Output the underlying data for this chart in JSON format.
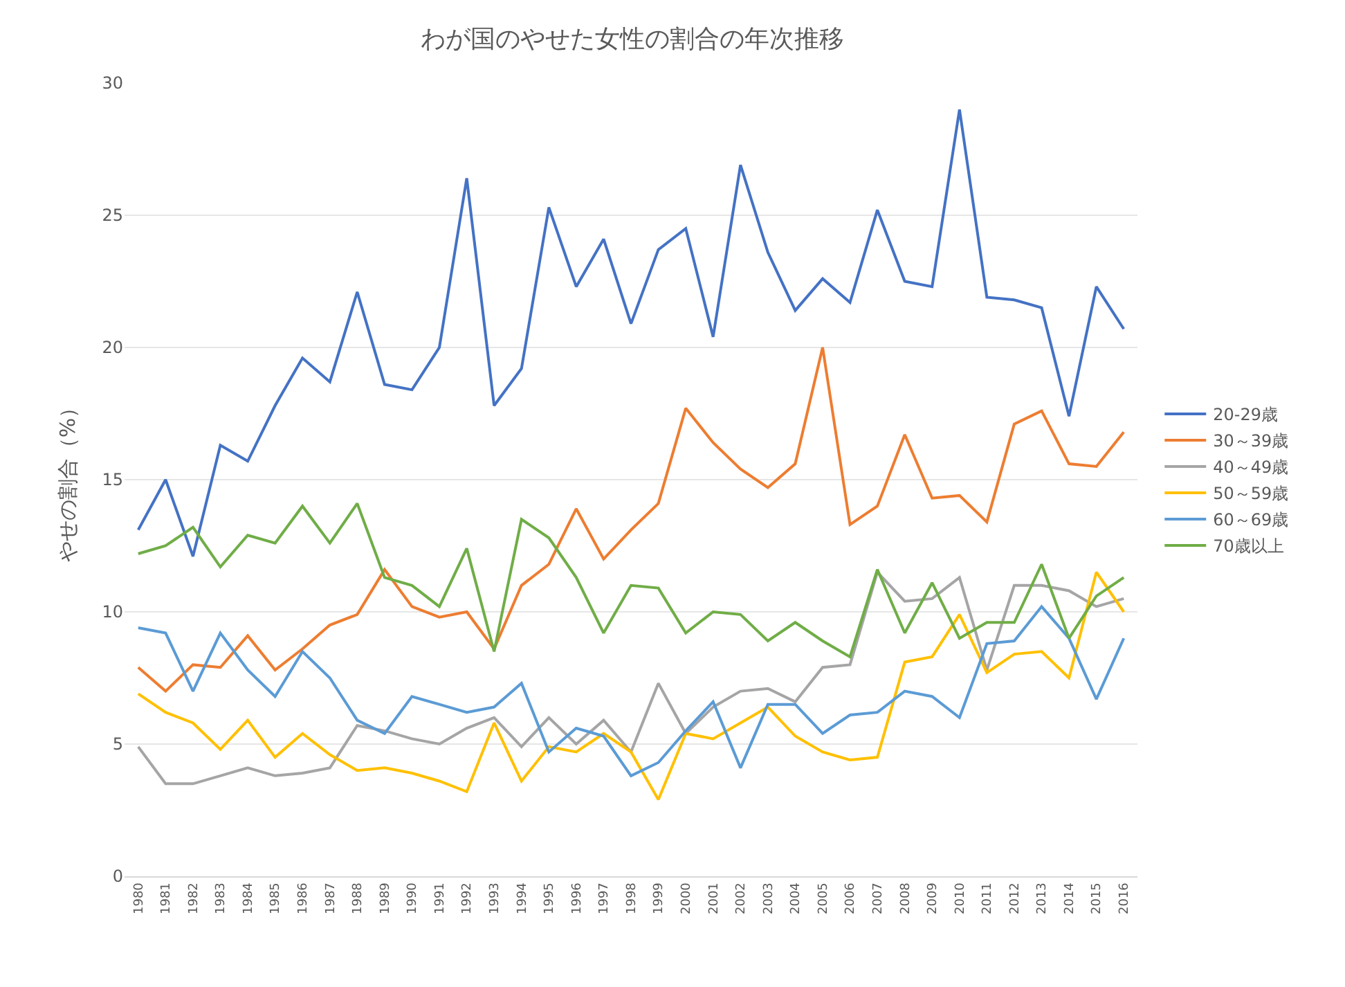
{
  "chart_data": {
    "type": "line",
    "title": "わが国のやせた女性の割合の年次推移",
    "ylabel": "やせの割合（%）",
    "categories": [
      "1980",
      "1981",
      "1982",
      "1983",
      "1984",
      "1985",
      "1986",
      "1987",
      "1988",
      "1989",
      "1990",
      "1991",
      "1992",
      "1993",
      "1994",
      "1995",
      "1996",
      "1997",
      "1998",
      "1999",
      "2000",
      "2001",
      "2002",
      "2003",
      "2004",
      "2005",
      "2006",
      "2007",
      "2008",
      "2009",
      "2010",
      "2011",
      "2012",
      "2013",
      "2014",
      "2015",
      "2016"
    ],
    "ylim": [
      0,
      30
    ],
    "yticks": [
      0,
      5,
      10,
      15,
      20,
      25,
      30
    ],
    "grid": "y",
    "legend": "right",
    "marker": "none",
    "line_style": "solid",
    "series": [
      {
        "name": "20-29歳",
        "color": "#4472c4",
        "values": [
          13.1,
          15.0,
          12.1,
          16.3,
          15.7,
          17.8,
          19.6,
          18.7,
          22.1,
          18.6,
          18.4,
          20.0,
          26.4,
          17.8,
          19.2,
          25.3,
          22.3,
          24.1,
          20.9,
          23.7,
          24.5,
          20.4,
          26.9,
          23.6,
          21.4,
          22.6,
          21.7,
          25.2,
          22.5,
          22.3,
          29.0,
          21.9,
          21.8,
          21.5,
          17.4,
          22.3,
          20.7
        ]
      },
      {
        "name": "30～39歳",
        "color": "#ed7d31",
        "values": [
          7.9,
          7.0,
          8.0,
          7.9,
          9.1,
          7.8,
          8.6,
          9.5,
          9.9,
          11.6,
          10.2,
          9.8,
          10.0,
          8.6,
          11.0,
          11.8,
          13.9,
          12.0,
          13.1,
          14.1,
          17.7,
          16.4,
          15.4,
          14.7,
          15.6,
          20.0,
          13.3,
          14.0,
          16.7,
          14.3,
          14.4,
          13.4,
          17.1,
          17.6,
          15.6,
          15.5,
          16.8
        ]
      },
      {
        "name": "40～49歳",
        "color": "#a5a5a5",
        "values": [
          4.9,
          3.5,
          3.5,
          3.8,
          4.1,
          3.8,
          3.9,
          4.1,
          5.7,
          5.5,
          5.2,
          5.0,
          5.6,
          6.0,
          4.9,
          6.0,
          5.0,
          5.9,
          4.7,
          7.3,
          5.4,
          6.4,
          7.0,
          7.1,
          6.6,
          7.9,
          8.0,
          11.5,
          10.4,
          10.5,
          11.3,
          7.8,
          11.0,
          11.0,
          10.8,
          10.2,
          10.5
        ]
      },
      {
        "name": "50～59歳",
        "color": "#ffc000",
        "values": [
          6.9,
          6.2,
          5.8,
          4.8,
          5.9,
          4.5,
          5.4,
          4.6,
          4.0,
          4.1,
          3.9,
          3.6,
          3.2,
          5.8,
          3.6,
          4.9,
          4.7,
          5.4,
          4.7,
          2.9,
          5.4,
          5.2,
          5.8,
          6.4,
          5.3,
          4.7,
          4.4,
          4.5,
          8.1,
          8.3,
          9.9,
          7.7,
          8.4,
          8.5,
          7.5,
          11.5,
          10.0
        ]
      },
      {
        "name": "60～69歳",
        "color": "#5b9bd5",
        "values": [
          9.4,
          9.2,
          7.0,
          9.2,
          7.8,
          6.8,
          8.5,
          7.5,
          5.9,
          5.4,
          6.8,
          6.5,
          6.2,
          6.4,
          7.3,
          4.7,
          5.6,
          5.3,
          3.8,
          4.3,
          5.5,
          6.6,
          4.1,
          6.5,
          6.5,
          5.4,
          6.1,
          6.2,
          7.0,
          6.8,
          6.0,
          8.8,
          8.9,
          10.2,
          9.0,
          6.7,
          9.0
        ]
      },
      {
        "name": "70歳以上",
        "color": "#70ad47",
        "values": [
          12.2,
          12.5,
          13.2,
          11.7,
          12.9,
          12.6,
          14.0,
          12.6,
          14.1,
          11.3,
          11.0,
          10.2,
          12.4,
          8.5,
          13.5,
          12.8,
          11.3,
          9.2,
          11.0,
          10.9,
          9.2,
          10.0,
          9.9,
          8.9,
          9.6,
          8.9,
          8.3,
          11.6,
          9.2,
          11.1,
          9.0,
          9.6,
          9.6,
          11.8,
          9.0,
          10.6,
          11.3
        ]
      }
    ]
  }
}
